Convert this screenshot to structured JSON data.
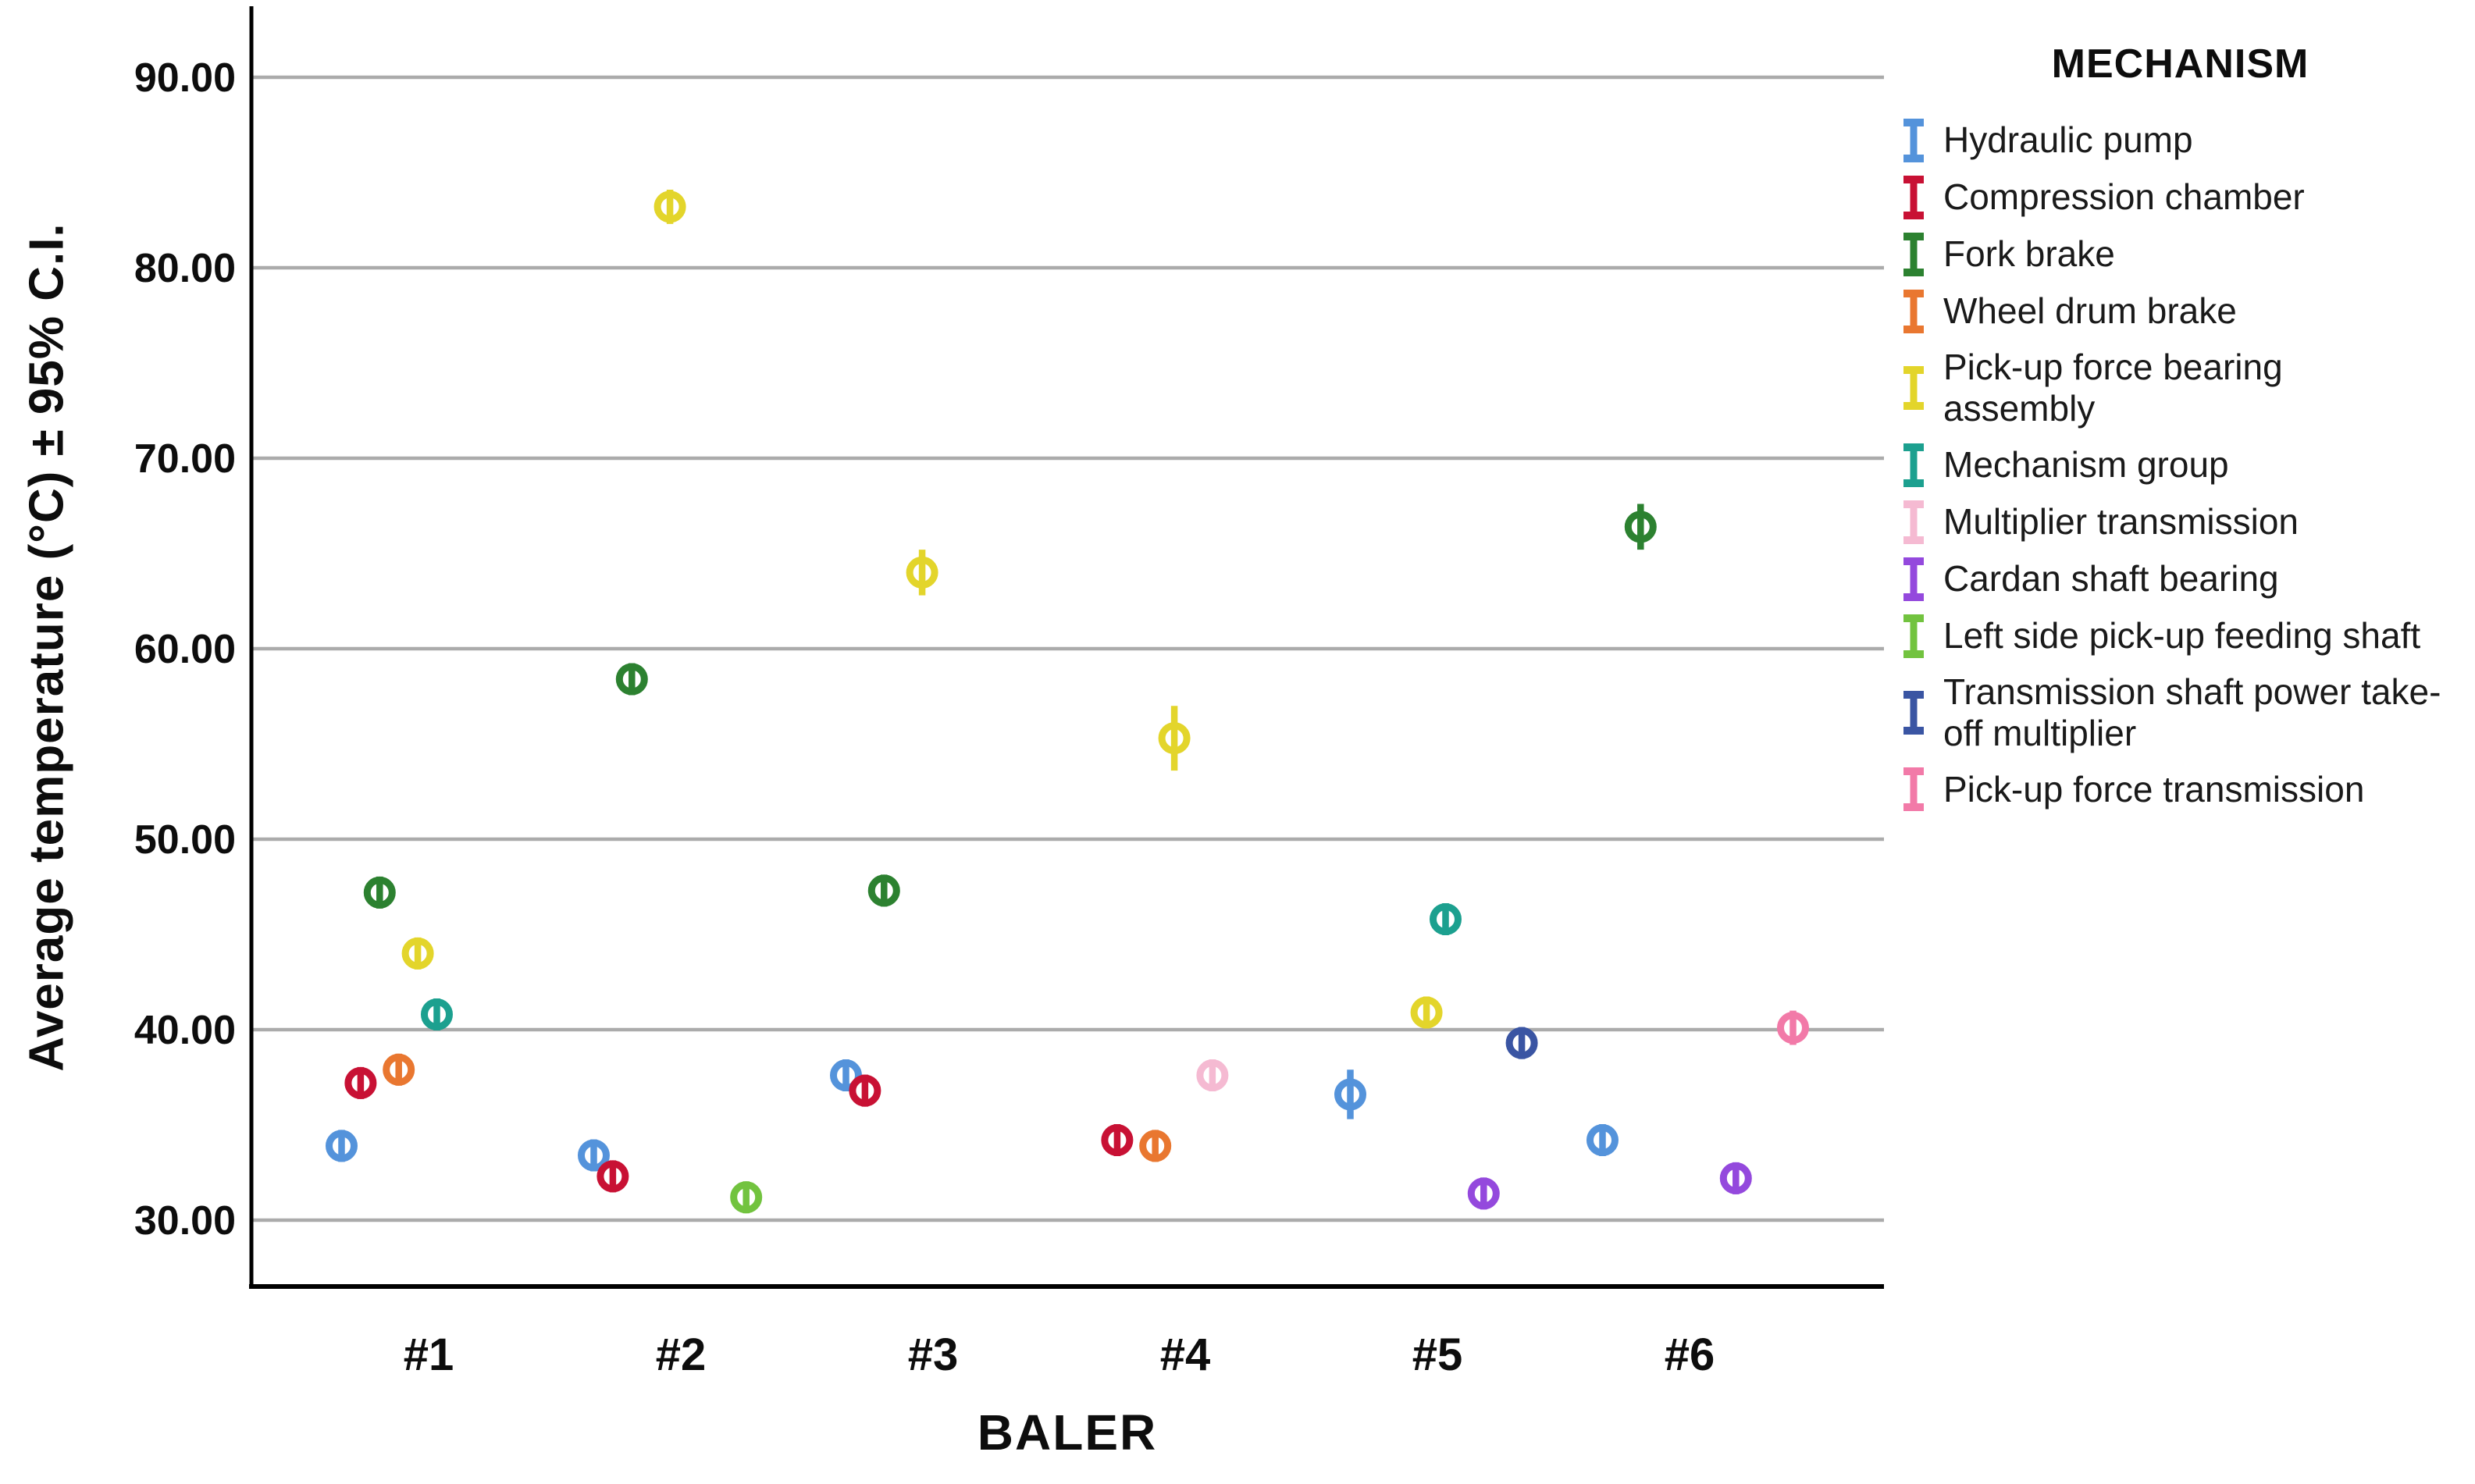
{
  "page": {
    "background": "#ffffff"
  },
  "legend": {
    "title": "MECHANISM"
  },
  "chart_data": {
    "type": "scatter",
    "subtype": "dodged-points-with-95CI-error-bars",
    "title": "",
    "xlabel": "BALER",
    "ylabel": "Average temperature (°C) ± 95% C.I.",
    "categories": [
      "#1",
      "#2",
      "#3",
      "#4",
      "#5",
      "#6"
    ],
    "y_ticks": [
      30,
      40,
      50,
      60,
      70,
      80,
      90
    ],
    "y_tick_labels": [
      "30.00",
      "40.00",
      "50.00",
      "60.00",
      "70.00",
      "80.00",
      "90.00"
    ],
    "ylim": [
      26.5,
      93.6
    ],
    "grid": "horizontal",
    "gridline_color": "#ABABAB",
    "axis_color": "#000000",
    "marker_style": "open-circle-with-vertical-error-bar",
    "series": [
      {
        "name": "Hydraulic pump",
        "color": "#5493DB",
        "points": [
          {
            "baler": "#1",
            "value": 33.9,
            "ci": 0.5
          },
          {
            "baler": "#2",
            "value": 33.4,
            "ci": 0.5
          },
          {
            "baler": "#3",
            "value": 37.6,
            "ci": 0.6
          },
          {
            "baler": "#5",
            "value": 36.6,
            "ci": 1.3
          },
          {
            "baler": "#6",
            "value": 34.2,
            "ci": 0.5
          }
        ]
      },
      {
        "name": "Compression chamber",
        "color": "#C81134",
        "points": [
          {
            "baler": "#1",
            "value": 37.2,
            "ci": 0.5
          },
          {
            "baler": "#2",
            "value": 32.3,
            "ci": 0.5
          },
          {
            "baler": "#3",
            "value": 36.8,
            "ci": 0.5
          },
          {
            "baler": "#4",
            "value": 34.2,
            "ci": 0.5
          }
        ]
      },
      {
        "name": "Fork brake",
        "color": "#2C8130",
        "points": [
          {
            "baler": "#1",
            "value": 47.2,
            "ci": 0.5
          },
          {
            "baler": "#2",
            "value": 58.4,
            "ci": 0.6
          },
          {
            "baler": "#3",
            "value": 47.3,
            "ci": 0.5
          },
          {
            "baler": "#6",
            "value": 66.4,
            "ci": 1.2
          }
        ]
      },
      {
        "name": "Wheel drum brake",
        "color": "#E97730",
        "points": [
          {
            "baler": "#1",
            "value": 37.9,
            "ci": 0.5
          },
          {
            "baler": "#4",
            "value": 33.9,
            "ci": 0.5
          }
        ]
      },
      {
        "name": "Pick-up force bearing assembly",
        "color": "#E3D52B",
        "points": [
          {
            "baler": "#1",
            "value": 44.0,
            "ci": 0.6
          },
          {
            "baler": "#2",
            "value": 83.2,
            "ci": 0.9
          },
          {
            "baler": "#3",
            "value": 64.0,
            "ci": 1.2
          },
          {
            "baler": "#4",
            "value": 55.3,
            "ci": 1.7
          },
          {
            "baler": "#5",
            "value": 40.9,
            "ci": 0.6
          }
        ]
      },
      {
        "name": "Mechanism group",
        "color": "#1CA08F",
        "points": [
          {
            "baler": "#1",
            "value": 40.8,
            "ci": 0.7
          },
          {
            "baler": "#5",
            "value": 45.8,
            "ci": 0.8
          }
        ]
      },
      {
        "name": "Multiplier transmission",
        "color": "#F5BAD2",
        "points": [
          {
            "baler": "#4",
            "value": 37.6,
            "ci": 0.5
          }
        ]
      },
      {
        "name": "Cardan shaft bearing",
        "color": "#9449DD",
        "points": [
          {
            "baler": "#5",
            "value": 31.4,
            "ci": 0.5
          },
          {
            "baler": "#6",
            "value": 32.2,
            "ci": 0.5
          }
        ]
      },
      {
        "name": "Left side pick-up feeding shaft",
        "color": "#72C33F",
        "points": [
          {
            "baler": "#2",
            "value": 31.2,
            "ci": 0.5
          }
        ]
      },
      {
        "name": "Transmission shaft power take-off multiplier",
        "color": "#3A55A3",
        "points": [
          {
            "baler": "#5",
            "value": 39.3,
            "ci": 0.5
          }
        ]
      },
      {
        "name": "Pick-up force transmission",
        "color": "#F27AA8",
        "points": [
          {
            "baler": "#6",
            "value": 40.1,
            "ci": 0.9
          }
        ]
      }
    ]
  }
}
